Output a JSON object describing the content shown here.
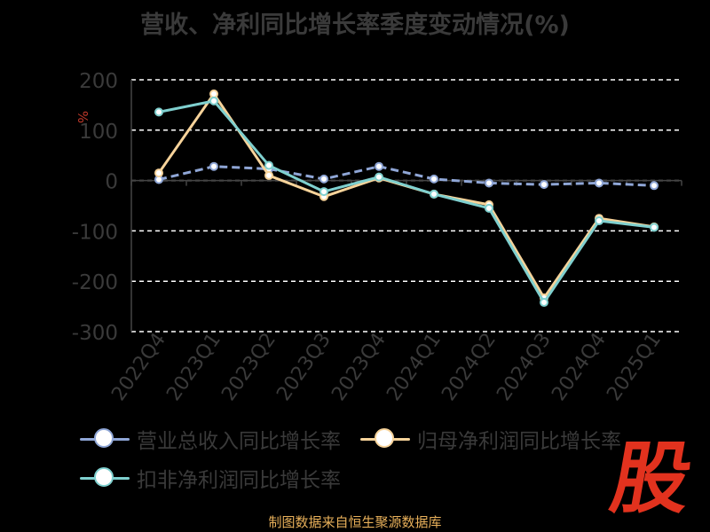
{
  "chart_data": {
    "type": "line",
    "title": "营收、净利同比增长率季度变动情况(%)",
    "ylabel": "%",
    "ylim": [
      -300,
      200
    ],
    "yticks": [
      200,
      100,
      0,
      -100,
      -200,
      -300
    ],
    "categories": [
      "2022Q4",
      "2023Q1",
      "2023Q2",
      "2023Q3",
      "2023Q4",
      "2024Q1",
      "2024Q2",
      "2024Q3",
      "2024Q4",
      "2025Q1"
    ],
    "series": [
      {
        "name": "营业总收入同比增长率",
        "color": "#8fa6d6",
        "dashed": true,
        "values": [
          2,
          28,
          23,
          3,
          28,
          3,
          -5,
          -8,
          -5,
          -10
        ]
      },
      {
        "name": "归母净利润同比增长率",
        "color": "#f7d39a",
        "dashed": false,
        "values": [
          15,
          172,
          10,
          -32,
          5,
          -27,
          -48,
          -233,
          -75,
          -92
        ]
      },
      {
        "name": "扣非净利润同比增长率",
        "color": "#7fd0cf",
        "dashed": false,
        "values": [
          136,
          158,
          30,
          -22,
          7,
          -27,
          -55,
          -242,
          -80,
          -93
        ]
      }
    ],
    "grid": true,
    "legend_position": "bottom"
  },
  "footer": "制图数据来自恒生聚源数据库",
  "watermark": "股"
}
